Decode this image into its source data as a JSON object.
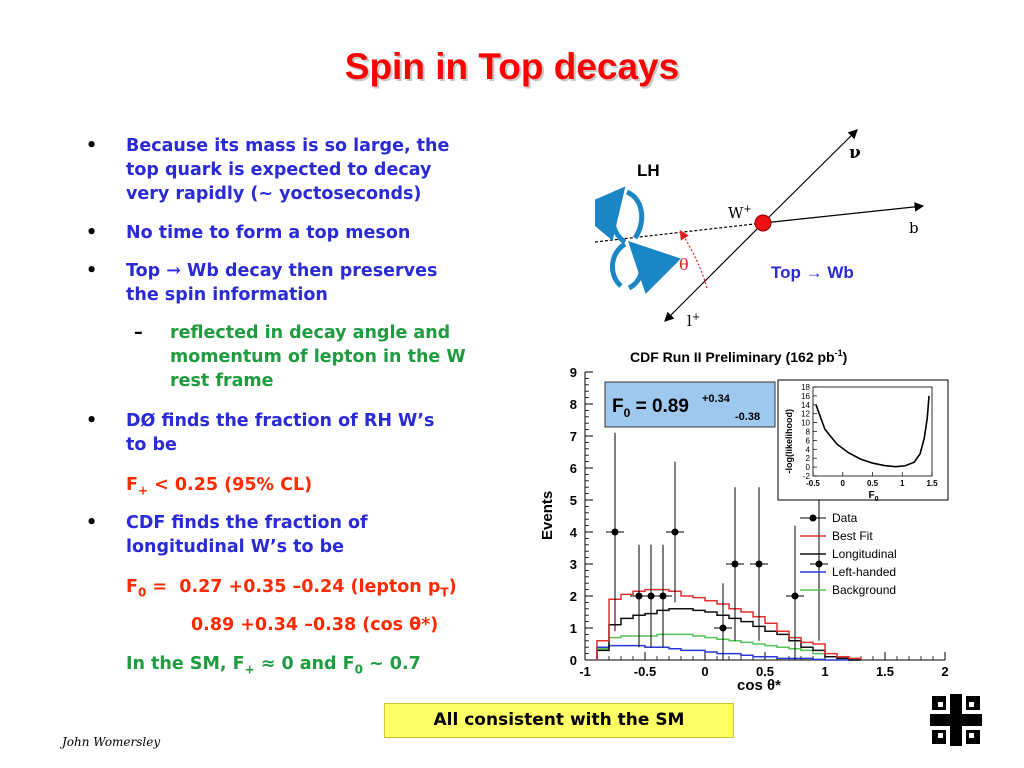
{
  "slide": {
    "title": "Spin in Top decays",
    "footer": "John Womersley",
    "conclusion": "All consistent with the SM"
  },
  "bullets": {
    "b1": [
      "Because its mass is so large, the",
      "top quark is expected to decay",
      "very rapidly (~ yoctoseconds)"
    ],
    "b2": "No time to form a top meson",
    "b3_line1_a": "Top ",
    "b3_line1_arrow": "→",
    "b3_line1_b": " Wb decay then preserves",
    "b3_line2": "the spin information",
    "sub": [
      "reflected in decay angle and",
      "momentum of lepton in the W",
      "rest frame"
    ],
    "sub_marker": "–",
    "b4": [
      "DØ finds the fraction of RH W’s",
      "to be"
    ],
    "f_plus_limit": {
      "F": "F",
      "sub": "+",
      "rest": " < 0.25 (95% CL)"
    },
    "b5": [
      "CDF finds the fraction of",
      "longitudinal W’s to be"
    ],
    "f0_line1": {
      "F": "F",
      "sub": "0",
      "eq": " = ",
      "val": "0.27 +0.35 –0.24 (lepton p",
      "psub": "T",
      "close": ")"
    },
    "f0_line2": "0.89 +0.34 –0.38 (cos θ*)",
    "sm": {
      "pre": "In the SM, F",
      "sub1": "+",
      "mid": " ≈ 0 and F",
      "sub2": "0",
      "post": " ~ 0.7"
    },
    "marker": "•"
  },
  "diagram": {
    "lh": "LH",
    "w": "W",
    "w_sup": "+",
    "b": "b",
    "nu": "ν",
    "lepton": "l",
    "lepton_sup": "+",
    "theta": "θ",
    "top_wb": "Top → Wb"
  },
  "chart_data": {
    "type": "histogram",
    "title": "CDF Run II Preliminary (162 pb",
    "title_sup": "-1",
    "title_close": ")",
    "xlabel": "cos θ*",
    "ylabel": "Events",
    "xlim": [
      -1,
      2
    ],
    "ylim": [
      0,
      9
    ],
    "xticks": [
      "-1",
      "-0.5",
      "0",
      "0.5",
      "1",
      "1.5",
      "2"
    ],
    "yticks": [
      "0",
      "1",
      "2",
      "3",
      "4",
      "5",
      "6",
      "7",
      "8",
      "9"
    ],
    "fit_box": {
      "main": "F",
      "sub": "0",
      "val": " = 0.89",
      "up": "+0.34",
      "down": "-0.38"
    },
    "legend": [
      "Data",
      "Best Fit",
      "Longitudinal",
      "Left-handed",
      "Background"
    ],
    "colors": {
      "data": "#000000",
      "best_fit": "#e03030",
      "longitudinal": "#111111",
      "left_handed": "#2a3ad6",
      "background": "#56c456"
    },
    "data_points": [
      {
        "x": -0.75,
        "y": 4,
        "err": 3.1
      },
      {
        "x": -0.55,
        "y": 2,
        "err": 1.6
      },
      {
        "x": -0.45,
        "y": 2,
        "err": 1.6
      },
      {
        "x": -0.35,
        "y": 2,
        "err": 1.6
      },
      {
        "x": -0.25,
        "y": 4,
        "err": 2.2
      },
      {
        "x": 0.25,
        "y": 3,
        "err": 2.4
      },
      {
        "x": 0.15,
        "y": 1,
        "err": 1.4
      },
      {
        "x": 0.45,
        "y": 3,
        "err": 2.4
      },
      {
        "x": 0.75,
        "y": 2,
        "err": 2.2
      },
      {
        "x": 0.95,
        "y": 3,
        "err": 2.4
      }
    ],
    "best_fit": {
      "edges": [
        -0.9,
        -0.8,
        -0.7,
        -0.6,
        -0.5,
        -0.4,
        -0.3,
        -0.2,
        -0.1,
        0.0,
        0.1,
        0.2,
        0.3,
        0.4,
        0.5,
        0.6,
        0.7,
        0.8,
        0.9,
        1.0,
        1.1,
        1.2,
        1.3
      ],
      "values": [
        0.6,
        1.9,
        2.05,
        2.15,
        2.2,
        2.2,
        2.15,
        2.0,
        1.95,
        1.85,
        1.75,
        1.6,
        1.5,
        1.35,
        1.15,
        0.9,
        0.7,
        0.55,
        0.5,
        0.2,
        0.1,
        0.05
      ]
    },
    "longitudinal": {
      "edges": [
        -0.9,
        -0.8,
        -0.7,
        -0.6,
        -0.5,
        -0.4,
        -0.3,
        -0.2,
        -0.1,
        0.0,
        0.1,
        0.2,
        0.3,
        0.4,
        0.5,
        0.6,
        0.7,
        0.8,
        0.9,
        1.0,
        1.1,
        1.2,
        1.3
      ],
      "values": [
        0.3,
        1.1,
        1.3,
        1.4,
        1.45,
        1.55,
        1.6,
        1.6,
        1.55,
        1.5,
        1.4,
        1.3,
        1.2,
        1.05,
        0.9,
        0.8,
        0.6,
        0.4,
        0.3,
        0.1,
        0.05,
        0.0
      ]
    },
    "left_handed": {
      "edges": [
        -0.9,
        -0.8,
        -0.7,
        -0.6,
        -0.5,
        -0.4,
        -0.3,
        -0.2,
        -0.1,
        0.0,
        0.1,
        0.2,
        0.3,
        0.4,
        0.5,
        0.6,
        0.7,
        0.8,
        0.9,
        1.0,
        1.1,
        1.2,
        1.3
      ],
      "values": [
        0.4,
        0.45,
        0.45,
        0.45,
        0.4,
        0.4,
        0.35,
        0.3,
        0.3,
        0.25,
        0.2,
        0.2,
        0.15,
        0.1,
        0.1,
        0.05,
        0.05,
        0.05,
        0.02,
        0.0,
        0.0,
        0.0
      ]
    },
    "background": {
      "edges": [
        -0.9,
        -0.8,
        -0.7,
        -0.6,
        -0.5,
        -0.4,
        -0.3,
        -0.2,
        -0.1,
        0.0,
        0.1,
        0.2,
        0.3,
        0.4,
        0.5,
        0.6,
        0.7,
        0.8,
        0.9,
        1.0,
        1.1,
        1.2,
        1.3
      ],
      "values": [
        0.35,
        0.7,
        0.75,
        0.75,
        0.75,
        0.8,
        0.8,
        0.8,
        0.75,
        0.7,
        0.65,
        0.6,
        0.55,
        0.5,
        0.45,
        0.4,
        0.35,
        0.3,
        0.2,
        0.1,
        0.05,
        0.0
      ]
    },
    "inset": {
      "ylabel": "-log(likelihood)",
      "xlabel": "F",
      "xlabel_sub": "0",
      "xticks": [
        "-0.5",
        "0",
        "0.5",
        "1",
        "1.5"
      ],
      "yticks": [
        "-2",
        "0",
        "2",
        "4",
        "6",
        "8",
        "10",
        "12",
        "14",
        "16",
        "18"
      ],
      "xlim": [
        -0.5,
        1.5
      ],
      "ylim": [
        -2,
        18
      ],
      "curve": [
        [
          -0.45,
          14
        ],
        [
          -0.3,
          8.5
        ],
        [
          -0.1,
          5.2
        ],
        [
          0.1,
          3.2
        ],
        [
          0.3,
          1.8
        ],
        [
          0.5,
          0.9
        ],
        [
          0.7,
          0.35
        ],
        [
          0.89,
          0.1
        ],
        [
          1.05,
          0.3
        ],
        [
          1.2,
          1.1
        ],
        [
          1.3,
          3.0
        ],
        [
          1.37,
          6.5
        ],
        [
          1.42,
          11
        ],
        [
          1.45,
          16
        ]
      ]
    }
  }
}
